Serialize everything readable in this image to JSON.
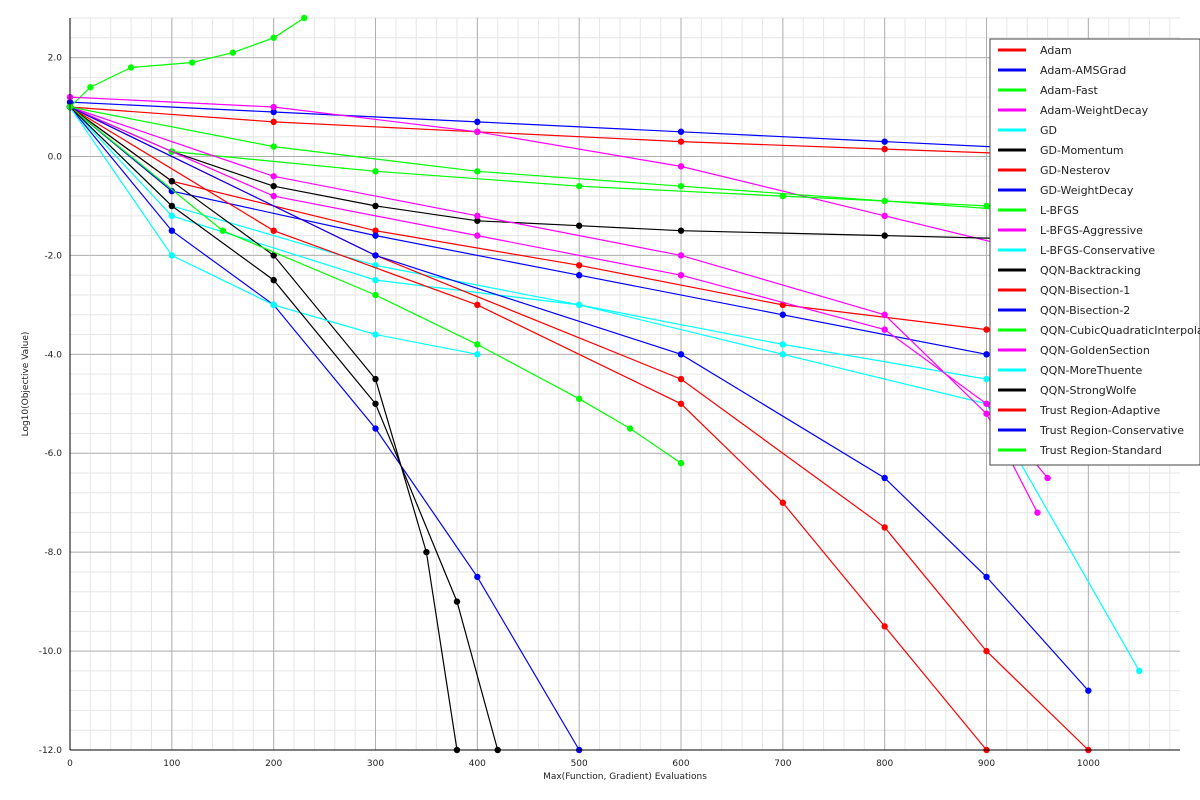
{
  "chart_data": {
    "type": "line",
    "xlabel": "Max(Function, Gradient) Evaluations",
    "ylabel": "Log10(Objective Value)",
    "xlim": [
      0,
      1090
    ],
    "ylim": [
      -12.0,
      2.8
    ],
    "x_ticks": [
      0,
      100,
      200,
      300,
      400,
      500,
      600,
      700,
      800,
      900,
      1000
    ],
    "y_ticks": [
      2.0,
      0.0,
      -2.0,
      -4.0,
      -6.0,
      -8.0,
      -10.0,
      -12.0
    ],
    "x_tick_labels": [
      "0",
      "100",
      "200",
      "300",
      "400",
      "500",
      "600",
      "700",
      "800",
      "900",
      "1000"
    ],
    "y_tick_labels": [
      "2.0",
      "0.0",
      "-2.0",
      "-4.0",
      "-6.0",
      "-8.0",
      "-10.0",
      "-12.0"
    ],
    "grid": true,
    "legend_position": "top-right",
    "series": [
      {
        "name": "Adam",
        "color": "#ff0000",
        "x": [
          0,
          200,
          400,
          600,
          800,
          1000
        ],
        "y": [
          1.0,
          0.7,
          0.5,
          0.3,
          0.15,
          0.0
        ]
      },
      {
        "name": "Adam-AMSGrad",
        "color": "#0000ff",
        "x": [
          0,
          200,
          400,
          600,
          800,
          1000
        ],
        "y": [
          1.1,
          0.9,
          0.7,
          0.5,
          0.3,
          0.1
        ]
      },
      {
        "name": "Adam-Fast",
        "color": "#00ff00",
        "x": [
          0,
          20,
          60,
          120,
          160,
          200,
          230
        ],
        "y": [
          1.0,
          1.4,
          1.8,
          1.9,
          2.1,
          2.4,
          2.8
        ]
      },
      {
        "name": "Adam-WeightDecay",
        "color": "#ff00ff",
        "x": [
          0,
          200,
          400,
          600,
          800,
          1000
        ],
        "y": [
          1.2,
          1.0,
          0.5,
          -0.2,
          -1.2,
          -2.2
        ]
      },
      {
        "name": "GD",
        "color": "#00ffff",
        "x": [
          0,
          100,
          300,
          500,
          700,
          900,
          1050
        ],
        "y": [
          1.0,
          -1.2,
          -2.5,
          -3.0,
          -4.0,
          -5.0,
          -10.4
        ]
      },
      {
        "name": "GD-Momentum",
        "color": "#000000",
        "x": [
          0,
          100,
          200,
          300,
          400,
          500,
          600,
          800,
          1000
        ],
        "y": [
          1.0,
          0.1,
          -0.6,
          -1.0,
          -1.3,
          -1.4,
          -1.5,
          -1.6,
          -1.7
        ]
      },
      {
        "name": "GD-Nesterov",
        "color": "#ff0000",
        "x": [
          0,
          100,
          300,
          500,
          700,
          900,
          1020
        ],
        "y": [
          1.0,
          -0.5,
          -1.5,
          -2.2,
          -3.0,
          -3.5,
          -4.0
        ]
      },
      {
        "name": "GD-WeightDecay",
        "color": "#0000ff",
        "x": [
          0,
          100,
          300,
          500,
          700,
          900,
          1000
        ],
        "y": [
          1.0,
          -0.7,
          -1.6,
          -2.4,
          -3.2,
          -4.0,
          -4.5
        ]
      },
      {
        "name": "L-BFGS",
        "color": "#00ff00",
        "x": [
          0,
          100,
          300,
          500,
          700,
          900,
          1000
        ],
        "y": [
          1.0,
          0.1,
          -0.3,
          -0.6,
          -0.8,
          -1.0,
          -1.1
        ]
      },
      {
        "name": "L-BFGS-Aggressive",
        "color": "#ff00ff",
        "x": [
          0,
          200,
          400,
          600,
          800,
          900,
          950
        ],
        "y": [
          1.0,
          -0.4,
          -1.2,
          -2.0,
          -3.2,
          -5.2,
          -7.2
        ]
      },
      {
        "name": "L-BFGS-Conservative",
        "color": "#00ffff",
        "x": [
          0,
          100,
          300,
          500,
          700,
          900,
          1000
        ],
        "y": [
          1.0,
          -1.0,
          -2.2,
          -3.0,
          -3.8,
          -4.5,
          -5.0
        ]
      },
      {
        "name": "QQN-Backtracking",
        "color": "#000000",
        "x": [
          0,
          100,
          200,
          300,
          350,
          380
        ],
        "y": [
          1.0,
          -0.5,
          -2.0,
          -4.5,
          -8.0,
          -12.0
        ]
      },
      {
        "name": "QQN-Bisection-1",
        "color": "#ff0000",
        "x": [
          0,
          200,
          400,
          600,
          700,
          800,
          900
        ],
        "y": [
          1.0,
          -1.5,
          -3.0,
          -5.0,
          -7.0,
          -9.5,
          -12.0
        ]
      },
      {
        "name": "QQN-Bisection-2",
        "color": "#0000ff",
        "x": [
          0,
          100,
          200,
          300,
          400,
          500
        ],
        "y": [
          1.0,
          -1.5,
          -3.0,
          -5.5,
          -8.5,
          -12.0
        ]
      },
      {
        "name": "QQN-CubicQuadraticInterpolation",
        "color": "#00ff00",
        "x": [
          0,
          150,
          300,
          400,
          500,
          550,
          600
        ],
        "y": [
          1.0,
          -1.5,
          -2.8,
          -3.8,
          -4.9,
          -5.5,
          -6.2
        ]
      },
      {
        "name": "QQN-GoldenSection",
        "color": "#ff00ff",
        "x": [
          0,
          200,
          400,
          600,
          800,
          900,
          960
        ],
        "y": [
          1.0,
          -0.8,
          -1.6,
          -2.4,
          -3.5,
          -5.0,
          -6.5
        ]
      },
      {
        "name": "QQN-MoreThuente",
        "color": "#00ffff",
        "x": [
          0,
          100,
          200,
          300,
          400
        ],
        "y": [
          1.0,
          -2.0,
          -3.0,
          -3.6,
          -4.0
        ]
      },
      {
        "name": "QQN-StrongWolfe",
        "color": "#000000",
        "x": [
          0,
          100,
          200,
          300,
          380,
          420
        ],
        "y": [
          1.0,
          -1.0,
          -2.5,
          -5.0,
          -9.0,
          -12.0
        ]
      },
      {
        "name": "Trust Region-Adaptive",
        "color": "#ff0000",
        "x": [
          0,
          300,
          600,
          800,
          900,
          1000
        ],
        "y": [
          1.0,
          -2.0,
          -4.5,
          -7.5,
          -10.0,
          -12.0
        ]
      },
      {
        "name": "Trust Region-Conservative",
        "color": "#0000ff",
        "x": [
          0,
          300,
          600,
          800,
          900,
          1000
        ],
        "y": [
          1.0,
          -2.0,
          -4.0,
          -6.5,
          -8.5,
          -10.8
        ]
      },
      {
        "name": "Trust Region-Standard",
        "color": "#00ff00",
        "x": [
          0,
          200,
          400,
          600,
          800,
          1000,
          1100
        ],
        "y": [
          1.0,
          0.2,
          -0.3,
          -0.6,
          -0.9,
          -1.2,
          -1.3
        ]
      }
    ]
  }
}
